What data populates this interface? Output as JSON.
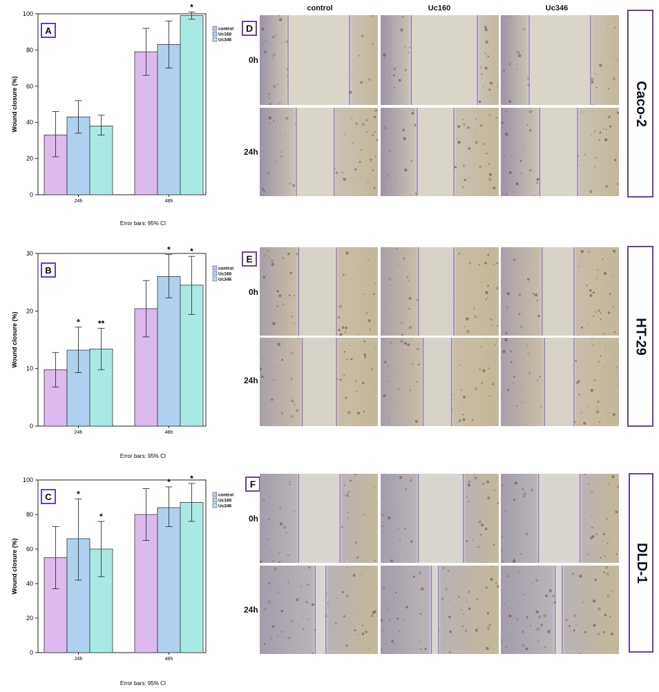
{
  "chart_data": [
    {
      "type": "bar",
      "panel": "A",
      "categories": [
        "24h",
        "48h"
      ],
      "series": [
        {
          "name": "control",
          "values": [
            33,
            79
          ],
          "ci": [
            [
              21,
              46
            ],
            [
              66,
              92
            ]
          ]
        },
        {
          "name": "Uc160",
          "values": [
            43,
            83
          ],
          "ci": [
            [
              34,
              52
            ],
            [
              70,
              96
            ]
          ]
        },
        {
          "name": "Uc346",
          "values": [
            38,
            99
          ],
          "ci": [
            [
              33,
              44
            ],
            [
              97,
              101
            ]
          ]
        }
      ],
      "sig": [
        [
          "",
          "",
          ""
        ],
        [
          "",
          "",
          "*"
        ]
      ],
      "ylabel": "Wound closure (%)",
      "ylim": [
        0,
        100
      ],
      "yticks": [
        0,
        20,
        40,
        60,
        80,
        100
      ],
      "note": "Error bars: 95% CI"
    },
    {
      "type": "bar",
      "panel": "B",
      "categories": [
        "24h",
        "48h"
      ],
      "series": [
        {
          "name": "control",
          "values": [
            9.8,
            20.4
          ],
          "ci": [
            [
              6.8,
              12.8
            ],
            [
              15.5,
              25.3
            ]
          ]
        },
        {
          "name": "Uc160",
          "values": [
            13.2,
            26.0
          ],
          "ci": [
            [
              9.3,
              17.2
            ],
            [
              22.3,
              29.8
            ]
          ]
        },
        {
          "name": "Uc346",
          "values": [
            13.4,
            24.5
          ],
          "ci": [
            [
              9.8,
              17.0
            ],
            [
              19.4,
              29.5
            ]
          ]
        }
      ],
      "sig": [
        [
          "",
          "*",
          "**"
        ],
        [
          "",
          "*",
          "*"
        ]
      ],
      "ylabel": "Wound closure (%)",
      "ylim": [
        0,
        30
      ],
      "yticks": [
        0,
        10,
        20,
        30
      ],
      "note": "Error bars: 95% CI"
    },
    {
      "type": "bar",
      "panel": "C",
      "categories": [
        "24h",
        "48h"
      ],
      "series": [
        {
          "name": "control",
          "values": [
            55,
            80
          ],
          "ci": [
            [
              37,
              73
            ],
            [
              65,
              95
            ]
          ]
        },
        {
          "name": "Uc160",
          "values": [
            66,
            84
          ],
          "ci": [
            [
              42,
              89
            ],
            [
              73,
              96
            ]
          ]
        },
        {
          "name": "Uc346",
          "values": [
            60,
            87
          ],
          "ci": [
            [
              44,
              76
            ],
            [
              76,
              98
            ]
          ]
        }
      ],
      "sig": [
        [
          "",
          "*",
          "*"
        ],
        [
          "",
          "*",
          "*"
        ]
      ],
      "ylabel": "Wound closure (%)",
      "ylim": [
        0,
        100
      ],
      "yticks": [
        0,
        20,
        40,
        60,
        80,
        100
      ],
      "note": "Error bars: 95% CI"
    }
  ],
  "colors": {
    "control": "#dcb9ef",
    "Uc160": "#afd1f0",
    "Uc346": "#a9e9e3",
    "frame": "#6b3fa0"
  },
  "micrographs": {
    "column_headers": [
      "control",
      "Uc160",
      "Uc346"
    ],
    "row_labels": [
      "0h",
      "24h"
    ],
    "panels": [
      {
        "label": "D",
        "cell_line": "Caco-2"
      },
      {
        "label": "E",
        "cell_line": "HT-29"
      },
      {
        "label": "F",
        "cell_line": "DLD-1"
      }
    ]
  }
}
